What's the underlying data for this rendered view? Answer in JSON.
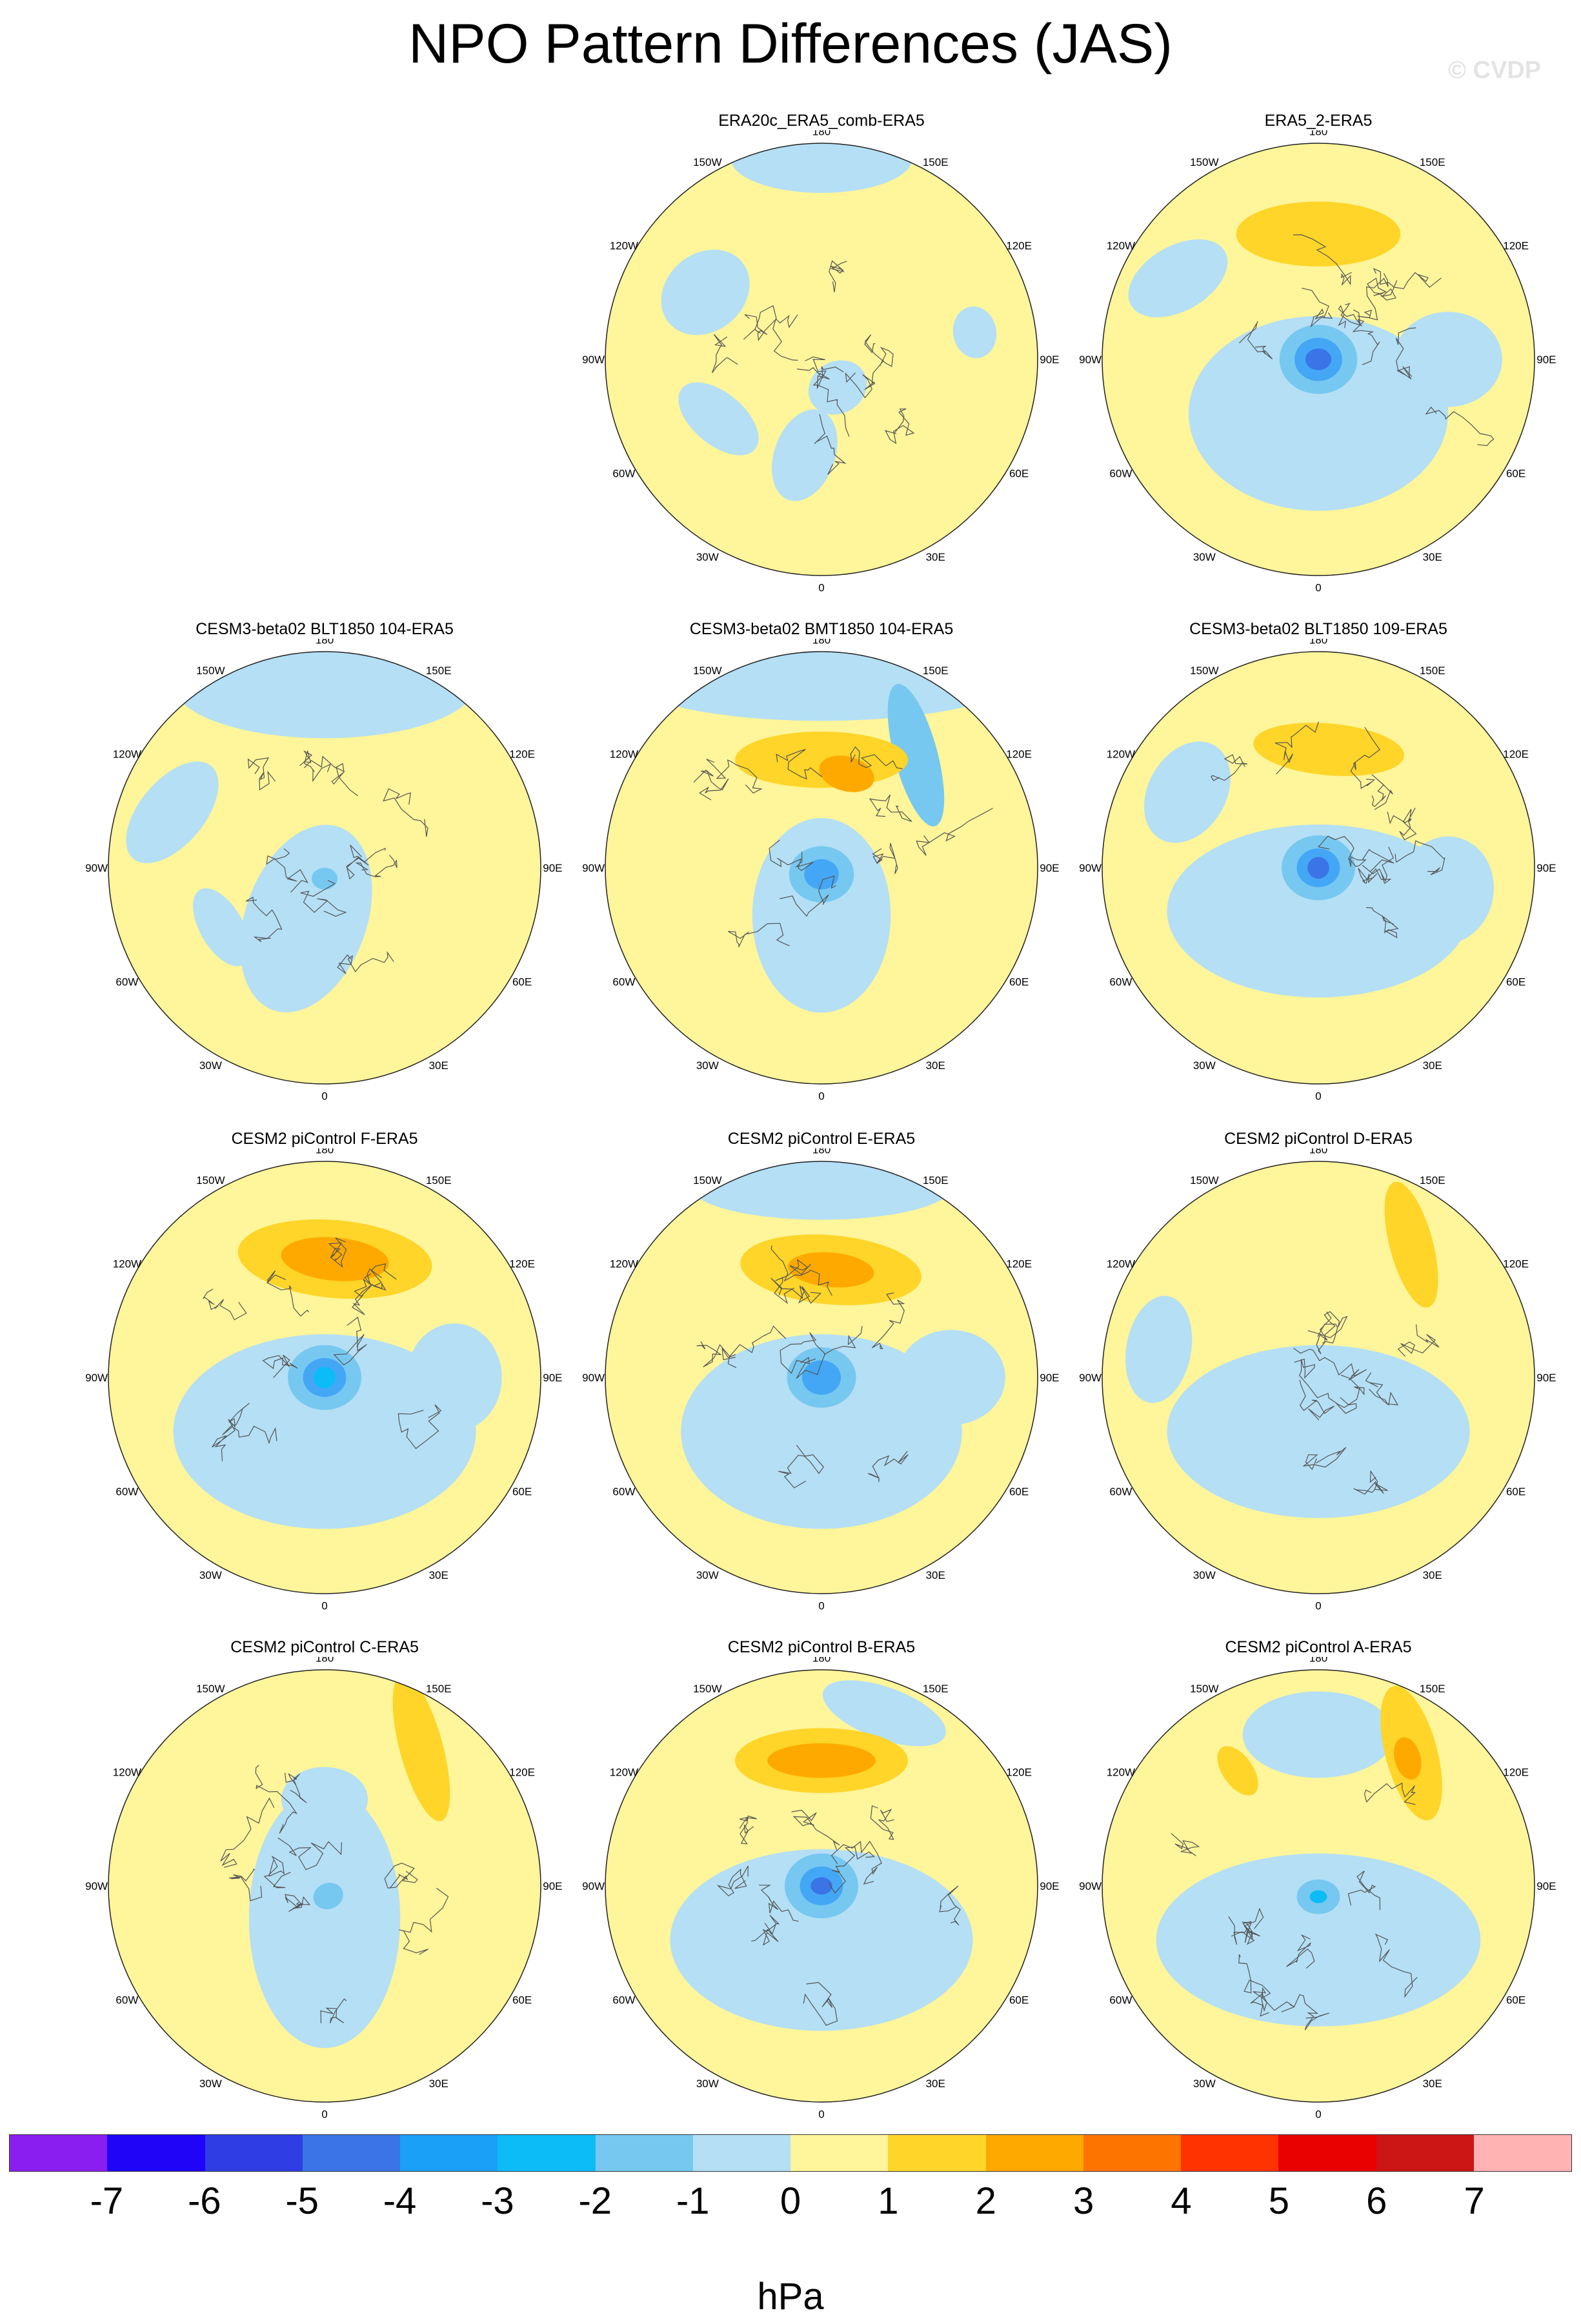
{
  "title": "NPO Pattern Differences (JAS)",
  "watermark": "© CVDP",
  "longitude_labels": [
    "180",
    "150E",
    "120E",
    "90E",
    "60E",
    "30E",
    "0",
    "30W",
    "60W",
    "90W",
    "120W",
    "150W"
  ],
  "panels": [
    {
      "title": "ERA20c_ERA5_comb-ERA5",
      "row": 0,
      "col": 1,
      "background": "#fff59a",
      "features": [
        {
          "kind": "blob",
          "fill": "#b4dff5",
          "lon": 180,
          "r": 0.93,
          "rx": 0.42,
          "ry": 0.16,
          "rot": 0
        },
        {
          "kind": "blob",
          "fill": "#b4dff5",
          "lon": -120,
          "r": 0.62,
          "rx": 0.22,
          "ry": 0.18,
          "rot": 20
        },
        {
          "kind": "blob",
          "fill": "#b4dff5",
          "lon": 30,
          "r": 0.15,
          "rx": 0.14,
          "ry": 0.12,
          "rot": 0
        },
        {
          "kind": "blob",
          "fill": "#b4dff5",
          "lon": -60,
          "r": 0.55,
          "rx": 0.22,
          "ry": 0.12,
          "rot": -20
        },
        {
          "kind": "blob",
          "fill": "#b4dff5",
          "lon": -10,
          "r": 0.45,
          "rx": 0.14,
          "ry": 0.22,
          "rot": 10
        },
        {
          "kind": "blob",
          "fill": "#b4dff5",
          "lon": 100,
          "r": 0.72,
          "rx": 0.12,
          "ry": 0.1,
          "rot": 0
        }
      ]
    },
    {
      "title": "ERA5_2-ERA5",
      "row": 0,
      "col": 2,
      "background": "#fff59a",
      "features": [
        {
          "kind": "blob",
          "fill": "#b4dff5",
          "lon": 0,
          "r": 0.25,
          "rx": 0.6,
          "ry": 0.45,
          "rot": 0
        },
        {
          "kind": "blob",
          "fill": "#b4dff5",
          "lon": -120,
          "r": 0.75,
          "rx": 0.25,
          "ry": 0.15,
          "rot": 30
        },
        {
          "kind": "blob",
          "fill": "#b4dff5",
          "lon": 90,
          "r": 0.6,
          "rx": 0.22,
          "ry": 0.25,
          "rot": 0
        },
        {
          "kind": "blob",
          "fill": "#fed528",
          "lon": 180,
          "r": 0.58,
          "rx": 0.38,
          "ry": 0.15,
          "rot": 0
        },
        {
          "kind": "blob",
          "fill": "#77c8f1",
          "lon": 0,
          "r": 0.0,
          "rx": 0.18,
          "ry": 0.16,
          "rot": 0
        },
        {
          "kind": "blob",
          "fill": "#44a7f5",
          "lon": 0,
          "r": 0.0,
          "rx": 0.11,
          "ry": 0.1,
          "rot": 0
        },
        {
          "kind": "blob",
          "fill": "#3a74e6",
          "lon": 0,
          "r": 0.0,
          "rx": 0.06,
          "ry": 0.05,
          "rot": 0
        }
      ]
    },
    {
      "title": "CESM3-beta02 BLT1850 104-ERA5",
      "row": 1,
      "col": 0,
      "background": "#fff59a",
      "features": [
        {
          "kind": "blob",
          "fill": "#b4dff5",
          "lon": 180,
          "r": 0.85,
          "rx": 0.7,
          "ry": 0.25,
          "rot": 0
        },
        {
          "kind": "blob",
          "fill": "#b4dff5",
          "lon": -20,
          "r": 0.25,
          "rx": 0.28,
          "ry": 0.45,
          "rot": 0
        },
        {
          "kind": "blob",
          "fill": "#b4dff5",
          "lon": -110,
          "r": 0.75,
          "rx": 0.28,
          "ry": 0.15,
          "rot": 20
        },
        {
          "kind": "blob",
          "fill": "#b4dff5",
          "lon": -60,
          "r": 0.55,
          "rx": 0.2,
          "ry": 0.1,
          "rot": 0
        },
        {
          "kind": "blob",
          "fill": "#77c8f1",
          "lon": 0,
          "r": 0.05,
          "rx": 0.06,
          "ry": 0.05,
          "rot": 0
        }
      ]
    },
    {
      "title": "CESM3-beta02 BMT1850 104-ERA5",
      "row": 1,
      "col": 1,
      "background": "#fff59a",
      "features": [
        {
          "kind": "blob",
          "fill": "#b4dff5",
          "lon": 180,
          "r": 0.88,
          "rx": 0.9,
          "ry": 0.2,
          "rot": 0
        },
        {
          "kind": "blob",
          "fill": "#b4dff5",
          "lon": 0,
          "r": 0.22,
          "rx": 0.32,
          "ry": 0.45,
          "rot": 0
        },
        {
          "kind": "blob",
          "fill": "#77c8f1",
          "lon": 140,
          "r": 0.68,
          "rx": 0.34,
          "ry": 0.1,
          "rot": 35
        },
        {
          "kind": "blob",
          "fill": "#fed528",
          "lon": 180,
          "r": 0.5,
          "rx": 0.4,
          "ry": 0.13,
          "rot": 0
        },
        {
          "kind": "blob",
          "fill": "#fea900",
          "lon": 165,
          "r": 0.45,
          "rx": 0.13,
          "ry": 0.08,
          "rot": 0
        },
        {
          "kind": "blob",
          "fill": "#77c8f1",
          "lon": 0,
          "r": 0.03,
          "rx": 0.15,
          "ry": 0.13,
          "rot": 0
        },
        {
          "kind": "blob",
          "fill": "#44a7f5",
          "lon": 0,
          "r": 0.03,
          "rx": 0.08,
          "ry": 0.07,
          "rot": 0
        }
      ]
    },
    {
      "title": "CESM3-beta02 BLT1850 109-ERA5",
      "row": 1,
      "col": 2,
      "background": "#fff59a",
      "features": [
        {
          "kind": "blob",
          "fill": "#b4dff5",
          "lon": 0,
          "r": 0.2,
          "rx": 0.7,
          "ry": 0.4,
          "rot": 0
        },
        {
          "kind": "blob",
          "fill": "#b4dff5",
          "lon": -120,
          "r": 0.7,
          "rx": 0.25,
          "ry": 0.18,
          "rot": 0
        },
        {
          "kind": "blob",
          "fill": "#b4dff5",
          "lon": 80,
          "r": 0.6,
          "rx": 0.25,
          "ry": 0.22,
          "rot": 0
        },
        {
          "kind": "blob",
          "fill": "#fed528",
          "lon": 175,
          "r": 0.55,
          "rx": 0.35,
          "ry": 0.12,
          "rot": 0
        },
        {
          "kind": "blob",
          "fill": "#77c8f1",
          "lon": 0,
          "r": 0.0,
          "rx": 0.17,
          "ry": 0.15,
          "rot": 0
        },
        {
          "kind": "blob",
          "fill": "#44a7f5",
          "lon": 0,
          "r": 0.0,
          "rx": 0.1,
          "ry": 0.09,
          "rot": 0
        },
        {
          "kind": "blob",
          "fill": "#3a74e6",
          "lon": 0,
          "r": 0.0,
          "rx": 0.05,
          "ry": 0.05,
          "rot": 0
        }
      ]
    },
    {
      "title": "CESM2 piControl F-ERA5",
      "row": 2,
      "col": 0,
      "background": "#fff59a",
      "features": [
        {
          "kind": "blob",
          "fill": "#b4dff5",
          "lon": 0,
          "r": 0.25,
          "rx": 0.7,
          "ry": 0.45,
          "rot": 0
        },
        {
          "kind": "blob",
          "fill": "#b4dff5",
          "lon": 90,
          "r": 0.6,
          "rx": 0.25,
          "ry": 0.22,
          "rot": 0
        },
        {
          "kind": "blob",
          "fill": "#fed528",
          "lon": 175,
          "r": 0.55,
          "rx": 0.45,
          "ry": 0.18,
          "rot": 0
        },
        {
          "kind": "blob",
          "fill": "#fea900",
          "lon": 175,
          "r": 0.55,
          "rx": 0.25,
          "ry": 0.1,
          "rot": 0
        },
        {
          "kind": "blob",
          "fill": "#77c8f1",
          "lon": 0,
          "r": 0.0,
          "rx": 0.17,
          "ry": 0.15,
          "rot": 0
        },
        {
          "kind": "blob",
          "fill": "#44a7f5",
          "lon": 0,
          "r": 0.0,
          "rx": 0.1,
          "ry": 0.09,
          "rot": 0
        },
        {
          "kind": "blob",
          "fill": "#0bbcf6",
          "lon": 0,
          "r": 0.0,
          "rx": 0.05,
          "ry": 0.05,
          "rot": 0
        }
      ]
    },
    {
      "title": "CESM2 piControl E-ERA5",
      "row": 2,
      "col": 1,
      "background": "#fff59a",
      "features": [
        {
          "kind": "blob",
          "fill": "#b4dff5",
          "lon": 0,
          "r": 0.25,
          "rx": 0.65,
          "ry": 0.45,
          "rot": 0
        },
        {
          "kind": "blob",
          "fill": "#b4dff5",
          "lon": 180,
          "r": 0.88,
          "rx": 0.6,
          "ry": 0.15,
          "rot": 0
        },
        {
          "kind": "blob",
          "fill": "#b4dff5",
          "lon": 90,
          "r": 0.6,
          "rx": 0.22,
          "ry": 0.25,
          "rot": 0
        },
        {
          "kind": "blob",
          "fill": "#fed528",
          "lon": 175,
          "r": 0.5,
          "rx": 0.42,
          "ry": 0.16,
          "rot": 0
        },
        {
          "kind": "blob",
          "fill": "#fea900",
          "lon": 175,
          "r": 0.5,
          "rx": 0.2,
          "ry": 0.08,
          "rot": 0
        },
        {
          "kind": "blob",
          "fill": "#77c8f1",
          "lon": 0,
          "r": 0.0,
          "rx": 0.16,
          "ry": 0.14,
          "rot": 0
        },
        {
          "kind": "blob",
          "fill": "#44a7f5",
          "lon": 0,
          "r": 0.0,
          "rx": 0.09,
          "ry": 0.08,
          "rot": 0
        }
      ]
    },
    {
      "title": "CESM2 piControl D-ERA5",
      "row": 2,
      "col": 2,
      "background": "#fff59a",
      "features": [
        {
          "kind": "blob",
          "fill": "#b4dff5",
          "lon": 0,
          "r": 0.25,
          "rx": 0.7,
          "ry": 0.4,
          "rot": 0
        },
        {
          "kind": "blob",
          "fill": "#b4dff5",
          "lon": -100,
          "r": 0.75,
          "rx": 0.25,
          "ry": 0.15,
          "rot": 0
        },
        {
          "kind": "blob",
          "fill": "#fed528",
          "lon": 145,
          "r": 0.75,
          "rx": 0.3,
          "ry": 0.1,
          "rot": 40
        }
      ]
    },
    {
      "title": "CESM2 piControl C-ERA5",
      "row": 3,
      "col": 0,
      "background": "#fff59a",
      "features": [
        {
          "kind": "blob",
          "fill": "#b4dff5",
          "lon": 0,
          "r": 0.15,
          "rx": 0.35,
          "ry": 0.6,
          "rot": 0
        },
        {
          "kind": "blob",
          "fill": "#b4dff5",
          "lon": 180,
          "r": 0.4,
          "rx": 0.2,
          "ry": 0.15,
          "rot": 0
        },
        {
          "kind": "blob",
          "fill": "#fed528",
          "lon": 145,
          "r": 0.78,
          "rx": 0.35,
          "ry": 0.1,
          "rot": 40
        },
        {
          "kind": "blob",
          "fill": "#77c8f1",
          "lon": 20,
          "r": 0.05,
          "rx": 0.07,
          "ry": 0.06,
          "rot": 0
        }
      ]
    },
    {
      "title": "CESM2 piControl B-ERA5",
      "row": 3,
      "col": 1,
      "background": "#fff59a",
      "features": [
        {
          "kind": "blob",
          "fill": "#b4dff5",
          "lon": 0,
          "r": 0.25,
          "rx": 0.7,
          "ry": 0.42,
          "rot": 0
        },
        {
          "kind": "blob",
          "fill": "#b4dff5",
          "lon": 160,
          "r": 0.85,
          "rx": 0.3,
          "ry": 0.12,
          "rot": 0
        },
        {
          "kind": "blob",
          "fill": "#fed528",
          "lon": 180,
          "r": 0.58,
          "rx": 0.4,
          "ry": 0.15,
          "rot": 0
        },
        {
          "kind": "blob",
          "fill": "#fea900",
          "lon": 180,
          "r": 0.58,
          "rx": 0.25,
          "ry": 0.08,
          "rot": 0
        },
        {
          "kind": "blob",
          "fill": "#77c8f1",
          "lon": 0,
          "r": 0.0,
          "rx": 0.17,
          "ry": 0.15,
          "rot": 0
        },
        {
          "kind": "blob",
          "fill": "#44a7f5",
          "lon": 0,
          "r": 0.0,
          "rx": 0.1,
          "ry": 0.09,
          "rot": 0
        },
        {
          "kind": "blob",
          "fill": "#3a74e6",
          "lon": 0,
          "r": 0.0,
          "rx": 0.05,
          "ry": 0.04,
          "rot": 0
        }
      ]
    },
    {
      "title": "CESM2 piControl A-ERA5",
      "row": 3,
      "col": 2,
      "background": "#fff59a",
      "features": [
        {
          "kind": "blob",
          "fill": "#b4dff5",
          "lon": 0,
          "r": 0.25,
          "rx": 0.75,
          "ry": 0.4,
          "rot": 0
        },
        {
          "kind": "blob",
          "fill": "#b4dff5",
          "lon": 180,
          "r": 0.7,
          "rx": 0.35,
          "ry": 0.2,
          "rot": 0
        },
        {
          "kind": "blob",
          "fill": "#fed528",
          "lon": 145,
          "r": 0.75,
          "rx": 0.32,
          "ry": 0.12,
          "rot": 40
        },
        {
          "kind": "blob",
          "fill": "#fea900",
          "lon": 145,
          "r": 0.72,
          "rx": 0.1,
          "ry": 0.06,
          "rot": 40
        },
        {
          "kind": "blob",
          "fill": "#fed528",
          "lon": -145,
          "r": 0.65,
          "rx": 0.07,
          "ry": 0.13,
          "rot": 0
        },
        {
          "kind": "blob",
          "fill": "#77c8f1",
          "lon": 0,
          "r": 0.05,
          "rx": 0.1,
          "ry": 0.08,
          "rot": 0
        },
        {
          "kind": "blob",
          "fill": "#0bbcf6",
          "lon": 0,
          "r": 0.05,
          "rx": 0.04,
          "ry": 0.03,
          "rot": 0
        }
      ]
    }
  ],
  "colorbar": {
    "units": "hPa",
    "colors": [
      "#8a1ef0",
      "#1f04f7",
      "#2e3de4",
      "#3a74e6",
      "#1ba0f7",
      "#0bbcf6",
      "#77c8f1",
      "#b4dff5",
      "#fff59a",
      "#fed528",
      "#fea900",
      "#fe7400",
      "#fe3301",
      "#e90000",
      "#cc1616",
      "#ffb3b3"
    ],
    "tick_labels": [
      "-7",
      "-6",
      "-5",
      "-4",
      "-3",
      "-2",
      "-1",
      "0",
      "1",
      "2",
      "3",
      "4",
      "5",
      "6",
      "7"
    ]
  }
}
